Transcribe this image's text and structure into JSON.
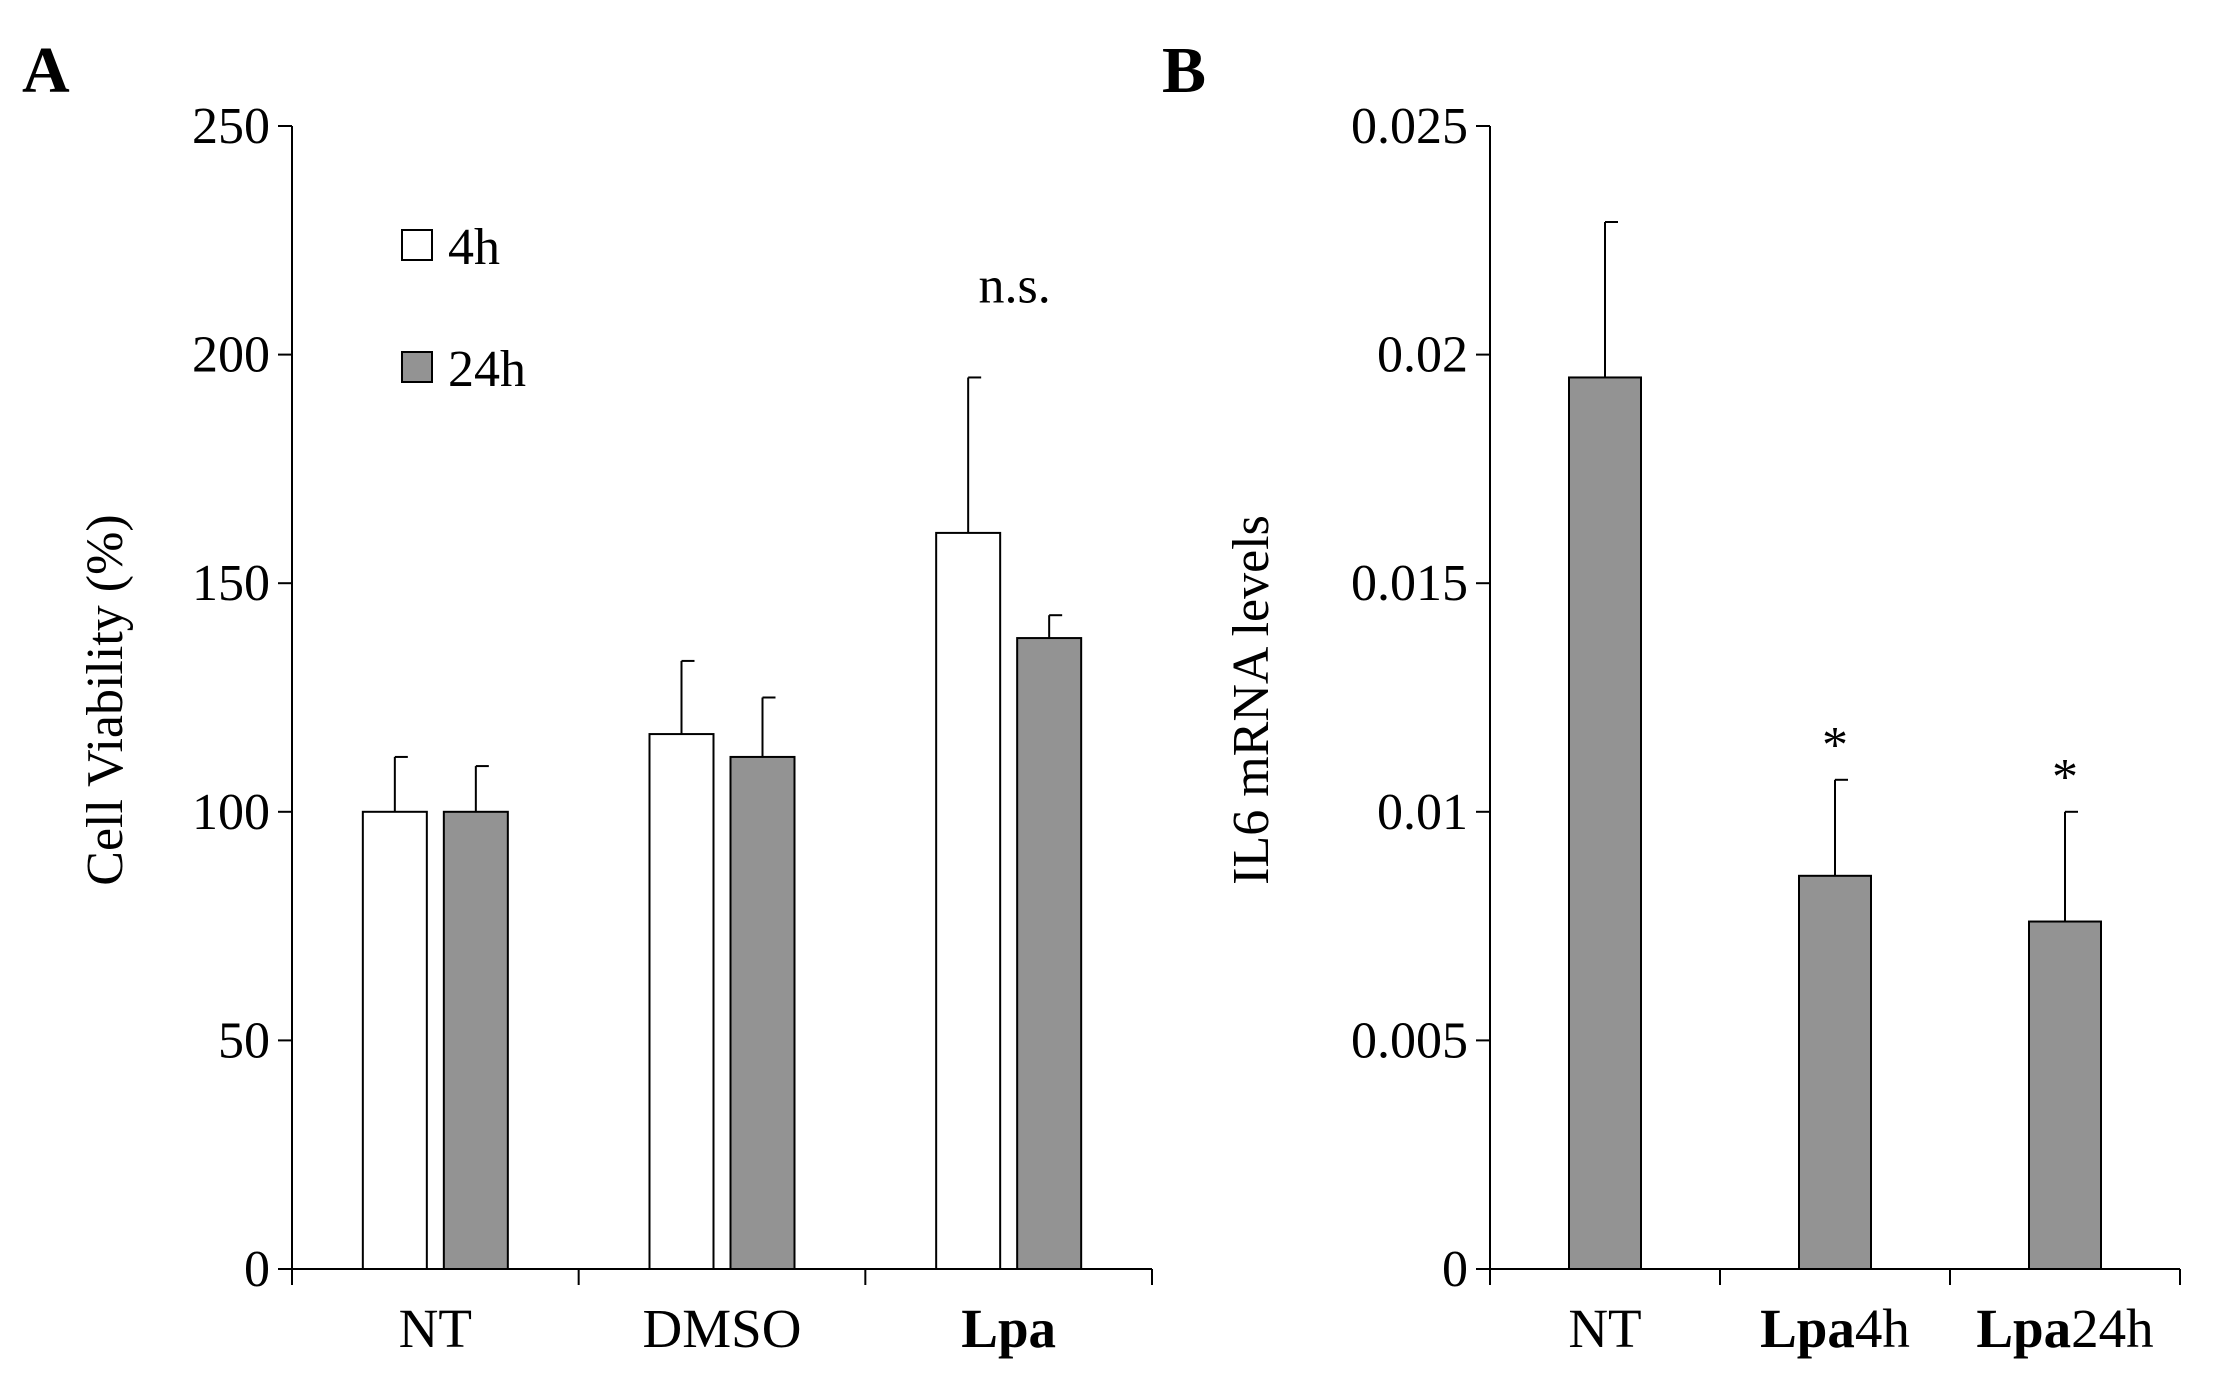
{
  "colors": {
    "white_bar": "#ffffff",
    "gray_bar": "#939393",
    "axis": "#000000"
  },
  "chart_data": [
    {
      "type": "bar",
      "panel_label": "A",
      "title": "",
      "xlabel": "",
      "ylabel": "Cell Viability (%)",
      "ylim": [
        0,
        250
      ],
      "yticks": [
        0,
        50,
        100,
        150,
        200,
        250
      ],
      "ytick_labels": [
        "0",
        "50",
        "100",
        "150",
        "200",
        "250"
      ],
      "categories": [
        {
          "label": "NT",
          "bold": false
        },
        {
          "label": "DMSO",
          "bold": false
        },
        {
          "label": "Lpa",
          "bold": true
        }
      ],
      "series": [
        {
          "name": "4h",
          "color": "#ffffff",
          "values": [
            100,
            117,
            161
          ],
          "errors": [
            12,
            16,
            34
          ]
        },
        {
          "name": "24h",
          "color": "#939393",
          "values": [
            100,
            112,
            138
          ],
          "errors": [
            10,
            13,
            5
          ]
        }
      ],
      "legend": {
        "position": "top-left",
        "entries": [
          "4h",
          "24h"
        ]
      },
      "annotations": [
        {
          "text": "n.s.",
          "category": 2
        }
      ]
    },
    {
      "type": "bar",
      "panel_label": "B",
      "title": "",
      "xlabel": "",
      "ylabel": "IL6 mRNA levels",
      "ylim": [
        0,
        0.025
      ],
      "yticks": [
        0,
        0.005,
        0.01,
        0.015,
        0.02,
        0.025
      ],
      "ytick_labels": [
        "0",
        "0.005",
        "0.01",
        "0.015",
        "0.02",
        "0.025"
      ],
      "categories": [
        {
          "label": "NT",
          "bold_part": "",
          "plain_part": "NT"
        },
        {
          "label": "Lpa4h",
          "bold_part": "Lpa",
          "plain_part": "4h"
        },
        {
          "label": "Lpa24h",
          "bold_part": "Lpa",
          "plain_part": "24h"
        }
      ],
      "series": [
        {
          "name": "IL6",
          "color": "#939393",
          "values": [
            0.0195,
            0.0086,
            0.0076
          ],
          "errors": [
            0.0034,
            0.0021,
            0.0024
          ]
        }
      ],
      "annotations": [
        {
          "text": "*",
          "category": 1
        },
        {
          "text": "*",
          "category": 2
        }
      ]
    }
  ]
}
